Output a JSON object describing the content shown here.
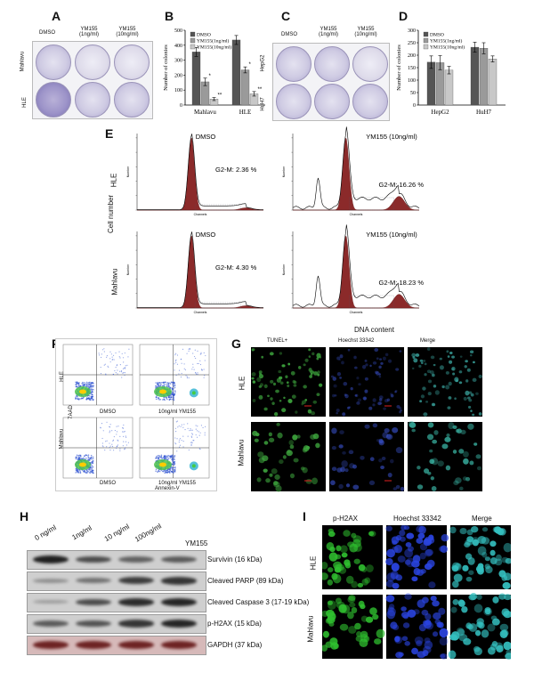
{
  "panels": {
    "A": "A",
    "B": "B",
    "C": "C",
    "D": "D",
    "E": "E",
    "F": "F",
    "G": "G",
    "H": "H",
    "I": "I"
  },
  "panelA": {
    "col1": "DMSO",
    "col2a": "YM155",
    "col2b": "(1ng/ml)",
    "col3a": "YM155",
    "col3b": "(10ng/ml)",
    "row1": "Mahlavu",
    "row2": "HLE"
  },
  "panelC": {
    "col1": "DMSO",
    "col2a": "YM155",
    "col2b": "(1ng/ml)",
    "col3a": "YM155",
    "col3b": "(10ng/ml)",
    "row1": "HepG2",
    "row2": "HuH7"
  },
  "chartB": {
    "type": "bar",
    "ylabel": "Number of colonies",
    "ylim": [
      0,
      500
    ],
    "yticks": [
      "0",
      "100",
      "200",
      "300",
      "400",
      "500"
    ],
    "categories": [
      "Mahlavu",
      "HLE"
    ],
    "legend": [
      "DMSO",
      "YM155(1ng/ml)",
      "YM155(10ng/ml)"
    ],
    "colors": [
      "#555555",
      "#9a9a9a",
      "#c8c8c8"
    ],
    "series": [
      {
        "values": [
          355,
          435
        ],
        "err": [
          30,
          30
        ]
      },
      {
        "values": [
          155,
          235
        ],
        "err": [
          25,
          20
        ]
      },
      {
        "values": [
          40,
          75
        ],
        "err": [
          10,
          15
        ]
      }
    ],
    "marks": [
      "*",
      "**",
      "*",
      "**"
    ]
  },
  "chartD": {
    "type": "bar",
    "ylabel": "Number of colonies",
    "ylim": [
      0,
      300
    ],
    "yticks": [
      "0",
      "50",
      "100",
      "150",
      "200",
      "250",
      "300"
    ],
    "categories": [
      "HepG2",
      "HuH7"
    ],
    "legend": [
      "DMSO",
      "YM155(1ng/ml)",
      "YM155(10ng/ml)"
    ],
    "colors": [
      "#555555",
      "#9a9a9a",
      "#c8c8c8"
    ],
    "series": [
      {
        "values": [
          172,
          232
        ],
        "err": [
          25,
          20
        ]
      },
      {
        "values": [
          170,
          228
        ],
        "err": [
          28,
          22
        ]
      },
      {
        "values": [
          140,
          185
        ],
        "err": [
          15,
          12
        ]
      }
    ]
  },
  "panelE": {
    "xlabel": "DNA content",
    "ylabel": "Cell number",
    "row1": "HLE",
    "row2": "Mahlavu",
    "tl_title": "DMSO",
    "tl_g2m": "G2-M: 2.36 %",
    "tr_title": "YM155 (10ng/ml)",
    "tr_g2m": "G2-M: 16.26 %",
    "bl_title": "DMSO",
    "bl_g2m": "G2-M: 4.30 %",
    "br_title": "YM155 (10ng/ml)",
    "br_g2m": "G2-M: 18.23 %",
    "axis_small": "Channels",
    "axis_num": "Number"
  },
  "panelF": {
    "ylabel": "7AAD",
    "xlabel": "Annexin-V",
    "row1": "HLE",
    "row2": "Mahlavu",
    "c1": "DMSO",
    "c2": "10ng/ml YM155"
  },
  "panelG": {
    "c1": "TUNEL+",
    "c2": "Hoechst 33342",
    "c3": "Merge",
    "row1": "HLE",
    "row2": "Mahlavu"
  },
  "panelH": {
    "doses": [
      "0 ng/ml",
      "1ng/ml",
      "10 ng/ml",
      "100ng/ml"
    ],
    "drug": "YM155",
    "rows": [
      {
        "name": "Survivin",
        "kda": "(16 kDa)"
      },
      {
        "name": "Cleaved PARP",
        "kda": "(89 kDa)"
      },
      {
        "name": "Cleaved Caspase 3",
        "kda": "(17-19 kDa)"
      },
      {
        "name": "p-H2AX",
        "kda": "(15 kDa)"
      },
      {
        "name": "GAPDH",
        "kda": "(37 kDa)"
      }
    ]
  },
  "panelI": {
    "c1": "p-H2AX",
    "c2": "Hoechst 33342",
    "c3": "Merge",
    "row1": "HLE",
    "row2": "Mahlavu"
  }
}
